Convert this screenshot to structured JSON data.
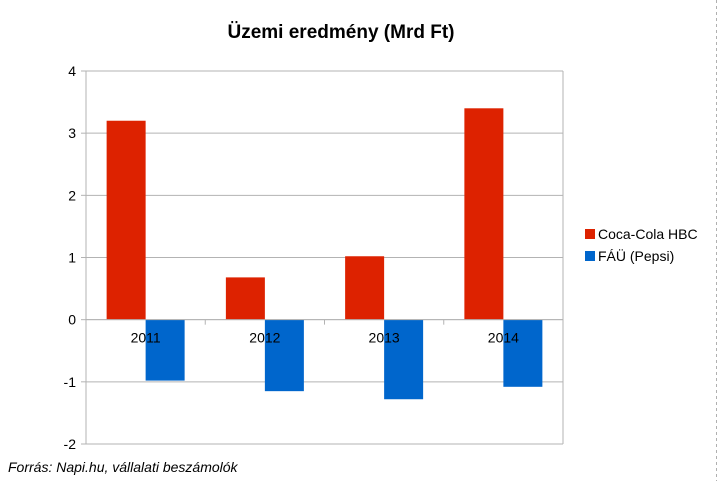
{
  "chart_data": {
    "type": "bar",
    "title": "Üzemi eredmény (Mrd Ft)",
    "categories": [
      "2011",
      "2012",
      "2013",
      "2014"
    ],
    "series": [
      {
        "name": "Coca-Cola HBC",
        "color": "#dd2200",
        "values": [
          3.2,
          0.68,
          1.02,
          3.4
        ]
      },
      {
        "name": "FÁÜ (Pepsi)",
        "color": "#0066cc",
        "values": [
          -0.98,
          -1.15,
          -1.28,
          -1.08
        ]
      }
    ],
    "ylim": [
      -2,
      4
    ],
    "yticks": [
      "-2",
      "-1",
      "0",
      "1",
      "2",
      "3",
      "4"
    ],
    "xlabel": "",
    "ylabel": "",
    "grid": true,
    "legend": "right"
  },
  "source_note": "Forrás: Napi.hu, vállalati beszámolók"
}
